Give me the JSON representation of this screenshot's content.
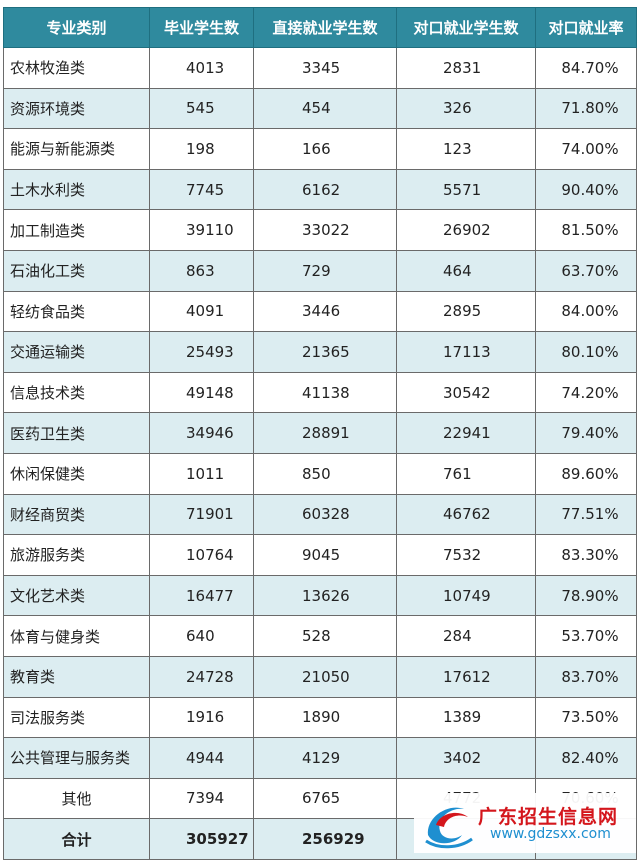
{
  "table": {
    "headers": [
      "专业类别",
      "毕业学生数",
      "直接就业学生数",
      "对口就业学生数",
      "对口就业率"
    ],
    "rows": [
      [
        "农林牧渔类",
        "4013",
        "3345",
        "2831",
        "84.70%"
      ],
      [
        "资源环境类",
        "545",
        "454",
        "326",
        "71.80%"
      ],
      [
        "能源与新能源类",
        "198",
        "166",
        "123",
        "74.00%"
      ],
      [
        "土木水利类",
        "7745",
        "6162",
        "5571",
        "90.40%"
      ],
      [
        "加工制造类",
        "39110",
        "33022",
        "26902",
        "81.50%"
      ],
      [
        "石油化工类",
        "863",
        "729",
        "464",
        "63.70%"
      ],
      [
        "轻纺食品类",
        "4091",
        "3446",
        "2895",
        "84.00%"
      ],
      [
        "交通运输类",
        "25493",
        "21365",
        "17113",
        "80.10%"
      ],
      [
        "信息技术类",
        "49148",
        "41138",
        "30542",
        "74.20%"
      ],
      [
        "医药卫生类",
        "34946",
        "28891",
        "22941",
        "79.40%"
      ],
      [
        "休闲保健类",
        "1011",
        "850",
        "761",
        "89.60%"
      ],
      [
        "财经商贸类",
        "71901",
        "60328",
        "46762",
        "77.51%"
      ],
      [
        "旅游服务类",
        "10764",
        "9045",
        "7532",
        "83.30%"
      ],
      [
        "文化艺术类",
        "16477",
        "13626",
        "10749",
        "78.90%"
      ],
      [
        "体育与健身类",
        "640",
        "528",
        "284",
        "53.70%"
      ],
      [
        "教育类",
        "24728",
        "21050",
        "17612",
        "83.70%"
      ],
      [
        "司法服务类",
        "1916",
        "1890",
        "1389",
        "73.50%"
      ],
      [
        "公共管理与服务类",
        "4944",
        "4129",
        "3402",
        "82.40%"
      ],
      [
        "其他",
        "7394",
        "6765",
        "4772",
        "70.60%"
      ]
    ],
    "total": [
      "合计",
      "305927",
      "256929",
      "",
      ""
    ]
  },
  "watermark": {
    "name": "广东招生信息网",
    "url": "www.gdzsxx.com",
    "icon": "logo-swirl-icon"
  },
  "colors": {
    "header_bg": "#2f8a9e",
    "row_alt_bg": "#dcedf1",
    "watermark_red": "#d4161c",
    "watermark_blue": "#1e8fd0"
  }
}
